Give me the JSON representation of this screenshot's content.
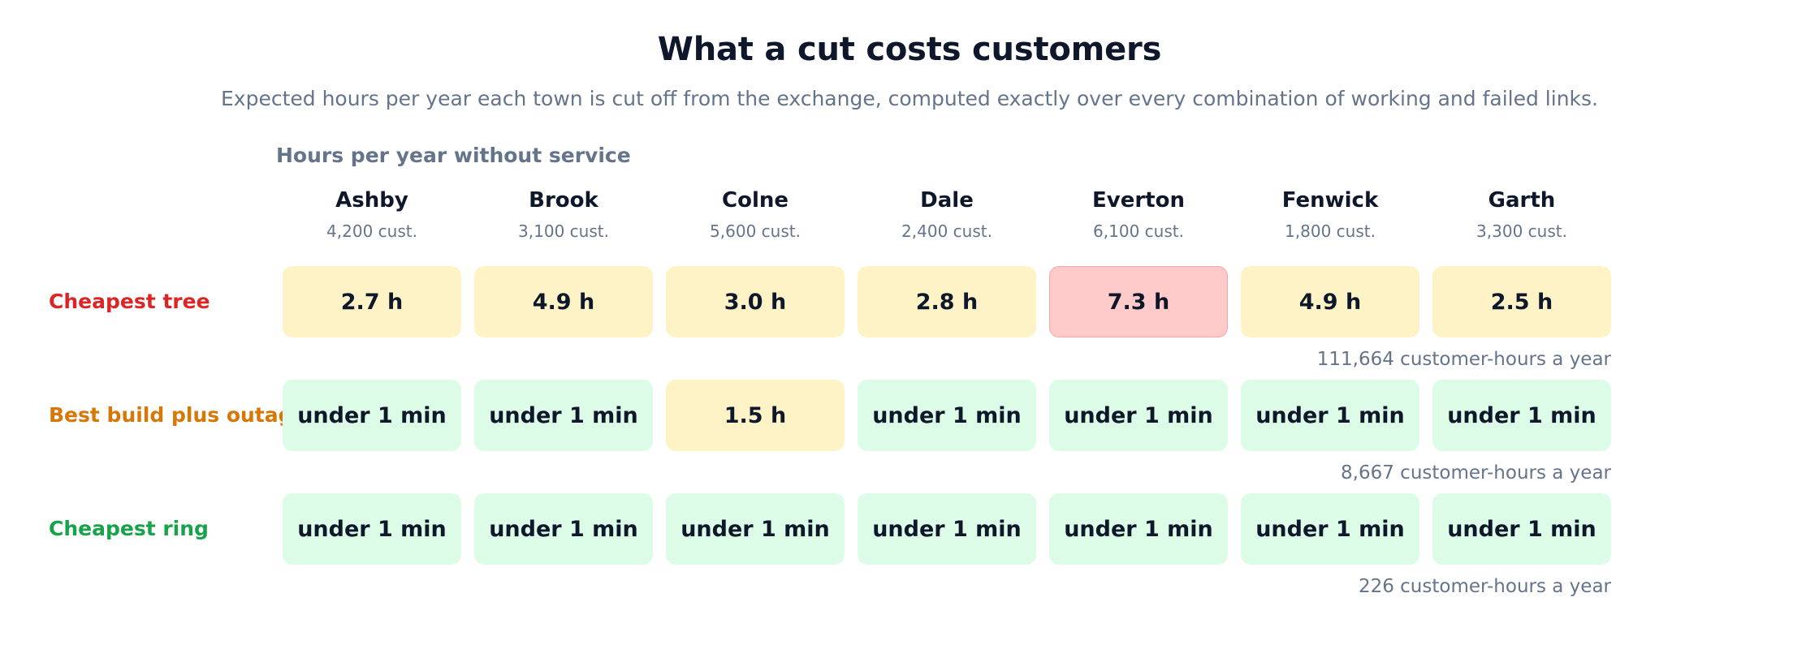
{
  "title": "What a cut costs customers",
  "subtitle": "Expected hours per year each town is cut off from the exchange, computed exactly over every combination of working and failed links.",
  "axis_label": "Hours per year without service",
  "colors": {
    "low": "#dcfce7",
    "mid": "#fef3c7",
    "high": "#fecaca",
    "row_tree": "#dc2626",
    "row_best": "#d97706",
    "row_ring": "#16a34a"
  },
  "chart_data": {
    "type": "heatmap",
    "title": "What a cut costs customers",
    "subtitle": "Expected hours per year each town is cut off from the exchange, computed exactly over every combination of working and failed links.",
    "value_label": "Hours per year without service",
    "columns": [
      {
        "name": "Ashby",
        "customers": "4,200 cust."
      },
      {
        "name": "Brook",
        "customers": "3,100 cust."
      },
      {
        "name": "Colne",
        "customers": "5,600 cust."
      },
      {
        "name": "Dale",
        "customers": "2,400 cust."
      },
      {
        "name": "Everton",
        "customers": "6,100 cust."
      },
      {
        "name": "Fenwick",
        "customers": "1,800 cust."
      },
      {
        "name": "Garth",
        "customers": "3,300 cust."
      }
    ],
    "rows": [
      {
        "name": "Cheapest tree",
        "color": "#dc2626",
        "cells": [
          {
            "label": "2.7 h",
            "level": "mid"
          },
          {
            "label": "4.9 h",
            "level": "mid"
          },
          {
            "label": "3.0 h",
            "level": "mid"
          },
          {
            "label": "2.8 h",
            "level": "mid"
          },
          {
            "label": "7.3 h",
            "level": "high"
          },
          {
            "label": "4.9 h",
            "level": "mid"
          },
          {
            "label": "2.5 h",
            "level": "mid"
          }
        ],
        "total": "111,664 customer-hours a year"
      },
      {
        "name": "Best build plus outage",
        "color": "#d97706",
        "cells": [
          {
            "label": "under 1 min",
            "level": "low"
          },
          {
            "label": "under 1 min",
            "level": "low"
          },
          {
            "label": "1.5 h",
            "level": "mid"
          },
          {
            "label": "under 1 min",
            "level": "low"
          },
          {
            "label": "under 1 min",
            "level": "low"
          },
          {
            "label": "under 1 min",
            "level": "low"
          },
          {
            "label": "under 1 min",
            "level": "low"
          }
        ],
        "total": "8,667 customer-hours a year"
      },
      {
        "name": "Cheapest ring",
        "color": "#16a34a",
        "cells": [
          {
            "label": "under 1 min",
            "level": "low"
          },
          {
            "label": "under 1 min",
            "level": "low"
          },
          {
            "label": "under 1 min",
            "level": "low"
          },
          {
            "label": "under 1 min",
            "level": "low"
          },
          {
            "label": "under 1 min",
            "level": "low"
          },
          {
            "label": "under 1 min",
            "level": "low"
          },
          {
            "label": "under 1 min",
            "level": "low"
          }
        ],
        "total": "226 customer-hours a year"
      }
    ]
  }
}
